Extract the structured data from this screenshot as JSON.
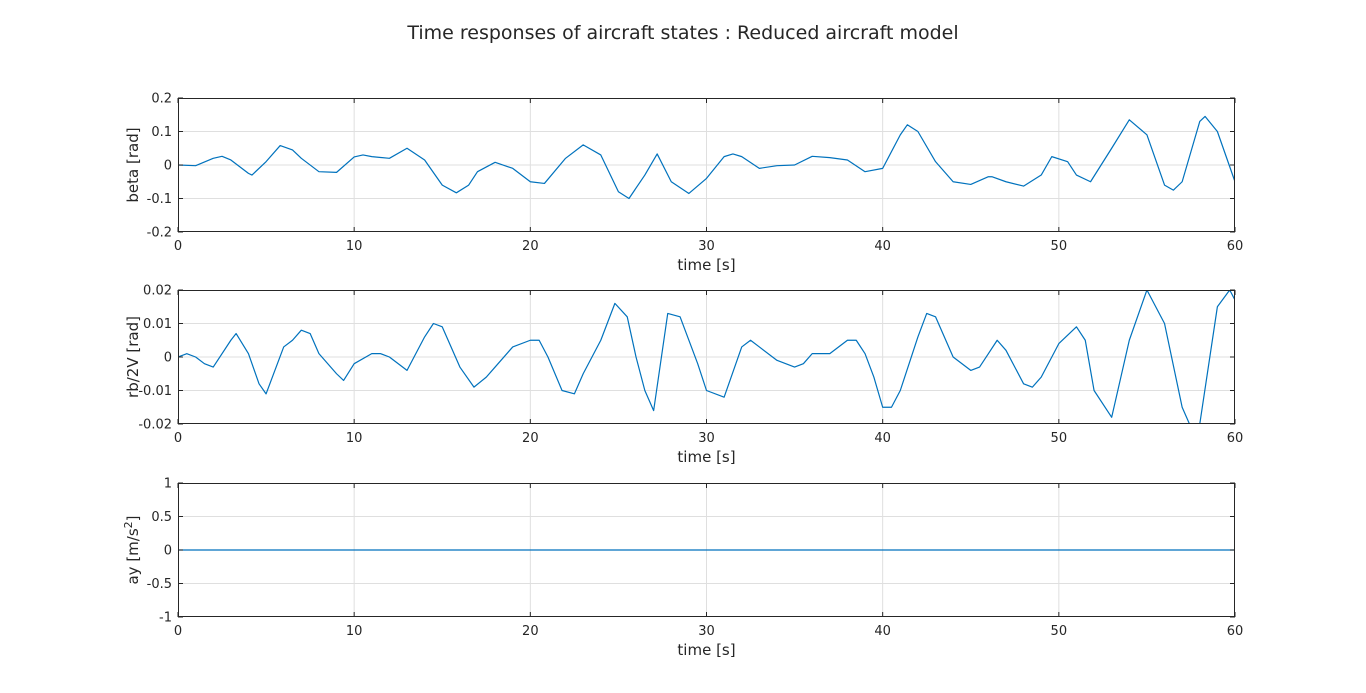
{
  "figure": {
    "title": "Time responses of aircraft states : Reduced aircraft model",
    "line_color": "#0072bd",
    "grid_color": "#dfdfdf",
    "axes_color": "#262626"
  },
  "chart_data": [
    {
      "type": "line",
      "title": "",
      "xlabel": "time [s]",
      "ylabel": "beta [rad]",
      "xlim": [
        0,
        60
      ],
      "ylim": [
        -0.2,
        0.2
      ],
      "xticks": [
        0,
        10,
        20,
        30,
        40,
        50,
        60
      ],
      "yticks": [
        -0.2,
        -0.1,
        0,
        0.1,
        0.2
      ],
      "xtick_labels": [
        "0",
        "10",
        "20",
        "30",
        "40",
        "50",
        "60"
      ],
      "ytick_labels": [
        "-0.2",
        "-0.1",
        "0",
        "0.1",
        "0.2"
      ],
      "grid": true,
      "series": [
        {
          "x": [
            0,
            1,
            2,
            2.5,
            3,
            4,
            4.2,
            5,
            5.8,
            6.5,
            7,
            8,
            9,
            10,
            10.5,
            11,
            12,
            13,
            14,
            15,
            15.8,
            16.5,
            17,
            18,
            19,
            20,
            20.8,
            22,
            23,
            24,
            25,
            25.6,
            26.5,
            27.2,
            28,
            29,
            30,
            31,
            31.5,
            32,
            33,
            34,
            35,
            36,
            37,
            38,
            39,
            40,
            41,
            41.4,
            42,
            43,
            44,
            45,
            46,
            46.2,
            47,
            48,
            49,
            49.6,
            50.5,
            51,
            51.8,
            53,
            54,
            55,
            56,
            56.5,
            57,
            58,
            58.3,
            59,
            60
          ],
          "y": [
            0,
            -0.002,
            0.02,
            0.026,
            0.015,
            -0.025,
            -0.03,
            0.01,
            0.058,
            0.045,
            0.02,
            -0.02,
            -0.022,
            0.024,
            0.03,
            0.025,
            0.02,
            0.05,
            0.015,
            -0.06,
            -0.083,
            -0.06,
            -0.02,
            0.008,
            -0.01,
            -0.05,
            -0.055,
            0.02,
            0.06,
            0.03,
            -0.08,
            -0.1,
            -0.03,
            0.033,
            -0.05,
            -0.085,
            -0.04,
            0.025,
            0.033,
            0.025,
            -0.01,
            -0.002,
            0,
            0.026,
            0.022,
            0.015,
            -0.02,
            -0.01,
            0.09,
            0.12,
            0.1,
            0.01,
            -0.05,
            -0.058,
            -0.035,
            -0.035,
            -0.05,
            -0.063,
            -0.03,
            0.025,
            0.01,
            -0.03,
            -0.05,
            0.05,
            0.135,
            0.09,
            -0.06,
            -0.075,
            -0.05,
            0.13,
            0.145,
            0.1,
            -0.05
          ]
        }
      ]
    },
    {
      "type": "line",
      "title": "",
      "xlabel": "time [s]",
      "ylabel": "rb/2V [rad]",
      "xlim": [
        0,
        60
      ],
      "ylim": [
        -0.02,
        0.02
      ],
      "xticks": [
        0,
        10,
        20,
        30,
        40,
        50,
        60
      ],
      "yticks": [
        -0.02,
        -0.01,
        0,
        0.01,
        0.02
      ],
      "xtick_labels": [
        "0",
        "10",
        "20",
        "30",
        "40",
        "50",
        "60"
      ],
      "ytick_labels": [
        "-0.02",
        "-0.01",
        "0",
        "0.01",
        "0.02"
      ],
      "grid": true,
      "series": [
        {
          "x": [
            0,
            0.5,
            1,
            1.5,
            2,
            3,
            3.3,
            4,
            4.6,
            5,
            6,
            6.5,
            7,
            7.5,
            8,
            9,
            9.4,
            10,
            11,
            11.5,
            12,
            13,
            14,
            14.5,
            15,
            16,
            16.8,
            17.5,
            18,
            19,
            20,
            20.5,
            21,
            21.8,
            22.5,
            23,
            24,
            24.8,
            25.5,
            26,
            26.5,
            27,
            27.8,
            28.5,
            29.5,
            30,
            31,
            32,
            32.5,
            33,
            34,
            35,
            35.5,
            36,
            37,
            38,
            38.5,
            39,
            39.5,
            40,
            40.5,
            41,
            42,
            42.5,
            43,
            44,
            45,
            45.5,
            46,
            46.5,
            47,
            48,
            48.5,
            49,
            50,
            51,
            51.5,
            52,
            53,
            54,
            55,
            56,
            57,
            57.5,
            58,
            59,
            59.7,
            60
          ],
          "y": [
            0,
            0.001,
            0,
            -0.002,
            -0.003,
            0.005,
            0.007,
            0.001,
            -0.008,
            -0.011,
            0.003,
            0.005,
            0.008,
            0.007,
            0.001,
            -0.005,
            -0.007,
            -0.002,
            0.001,
            0.001,
            0,
            -0.004,
            0.006,
            0.01,
            0.009,
            -0.003,
            -0.009,
            -0.006,
            -0.003,
            0.003,
            0.005,
            0.005,
            0,
            -0.01,
            -0.011,
            -0.005,
            0.005,
            0.016,
            0.012,
            0,
            -0.01,
            -0.016,
            0.013,
            0.012,
            -0.002,
            -0.01,
            -0.012,
            0.003,
            0.005,
            0.003,
            -0.001,
            -0.003,
            -0.002,
            0.001,
            0.001,
            0.005,
            0.005,
            0.001,
            -0.006,
            -0.015,
            -0.015,
            -0.01,
            0.006,
            0.013,
            0.012,
            0,
            -0.004,
            -0.003,
            0.001,
            0.005,
            0.002,
            -0.008,
            -0.009,
            -0.006,
            0.004,
            0.009,
            0.005,
            -0.01,
            -0.018,
            0.005,
            0.02,
            0.01,
            -0.015,
            -0.021,
            -0.02,
            0.015,
            0.02,
            0.017
          ]
        }
      ]
    },
    {
      "type": "line",
      "title": "",
      "xlabel": "time [s]",
      "ylabel": "ay [m/s2]",
      "xlim": [
        0,
        60
      ],
      "ylim": [
        -1,
        1
      ],
      "xticks": [
        0,
        10,
        20,
        30,
        40,
        50,
        60
      ],
      "yticks": [
        -1,
        -0.5,
        0,
        0.5,
        1
      ],
      "xtick_labels": [
        "0",
        "10",
        "20",
        "30",
        "40",
        "50",
        "60"
      ],
      "ytick_labels": [
        "-1",
        "-0.5",
        "0",
        "0.5",
        "1"
      ],
      "grid": true,
      "series": [
        {
          "x": [
            0,
            60
          ],
          "y": [
            0,
            0
          ]
        }
      ]
    }
  ]
}
